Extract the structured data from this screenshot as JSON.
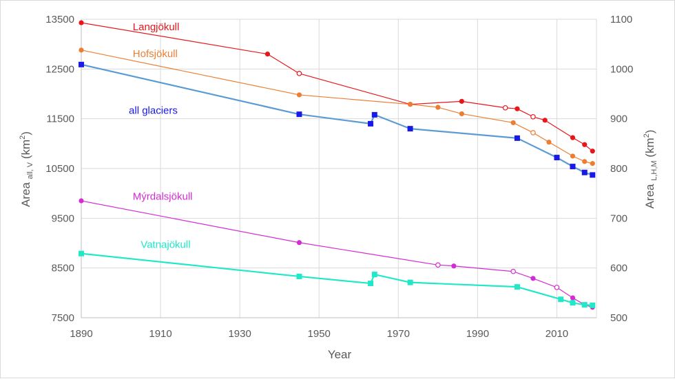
{
  "chart_data": {
    "type": "line",
    "title": "",
    "xlabel": "Year",
    "ylabel_left": {
      "main": "Area ",
      "sub": "all, V",
      "unit_pre": " (km",
      "unit_sup": "2",
      "unit_post": ")"
    },
    "ylabel_right": {
      "main": "Area ",
      "sub": "L,H,M",
      "unit_pre": " (km",
      "unit_sup": "2",
      "unit_post": ")"
    },
    "xlim": [
      1890,
      2020
    ],
    "ylim_left": [
      7500,
      13500
    ],
    "ylim_right": [
      500,
      1100
    ],
    "x_ticks": [
      1890,
      1910,
      1930,
      1950,
      1970,
      1990,
      2010
    ],
    "y_ticks_left": [
      7500,
      8500,
      9500,
      10500,
      11500,
      12500,
      13500
    ],
    "y_ticks_right": [
      500,
      600,
      700,
      800,
      900,
      1000,
      1100
    ],
    "grid": true,
    "series": [
      {
        "name": "Langjökull",
        "axis": "right",
        "color": "#e8161a",
        "marker": "circle",
        "line_width": 1.2,
        "label_pos": [
          1903,
          1078
        ],
        "points": [
          [
            1890,
            1093,
            true
          ],
          [
            1937,
            1030,
            true
          ],
          [
            1945,
            991,
            false
          ],
          [
            1973,
            929,
            true
          ],
          [
            1986,
            935,
            true
          ],
          [
            1997,
            922,
            false
          ],
          [
            2000,
            920,
            true
          ],
          [
            2004,
            904,
            false
          ],
          [
            2007,
            897,
            true
          ],
          [
            2014,
            862,
            true
          ],
          [
            2017,
            848,
            true
          ],
          [
            2019,
            835,
            true
          ]
        ]
      },
      {
        "name": "Hofsjökull",
        "axis": "right",
        "color": "#ed7d31",
        "marker": "circle",
        "line_width": 1.2,
        "label_pos": [
          1903,
          1024
        ],
        "points": [
          [
            1890,
            1038,
            true
          ],
          [
            1945,
            948,
            true
          ],
          [
            1973,
            929,
            true
          ],
          [
            1980,
            923,
            true
          ],
          [
            1986,
            910,
            true
          ],
          [
            1999,
            892,
            true
          ],
          [
            2004,
            872,
            false
          ],
          [
            2008,
            853,
            true
          ],
          [
            2014,
            825,
            true
          ],
          [
            2017,
            814,
            true
          ],
          [
            2019,
            810,
            true
          ]
        ]
      },
      {
        "name": "all glaciers",
        "axis": "left",
        "color": "#5b9bd5",
        "marker_color": "#1a1ae6",
        "marker": "square",
        "line_width": 2.2,
        "label_pos": [
          1902,
          11600
        ],
        "points": [
          [
            1890,
            12590,
            true
          ],
          [
            1945,
            11590,
            true
          ],
          [
            1963,
            11400,
            true
          ],
          [
            1964,
            11580,
            true
          ],
          [
            1973,
            11300,
            true
          ],
          [
            2000,
            11110,
            true
          ],
          [
            2010,
            10720,
            true
          ],
          [
            2014,
            10540,
            true
          ],
          [
            2017,
            10420,
            true
          ],
          [
            2019,
            10370,
            true
          ]
        ]
      },
      {
        "name": "Mýrdalsjökull",
        "axis": "right",
        "color": "#d42bd4",
        "marker": "circle",
        "line_width": 1.2,
        "label_pos": [
          1903,
          737
        ],
        "points": [
          [
            1890,
            735,
            true
          ],
          [
            1945,
            651,
            true
          ],
          [
            1980,
            606,
            false
          ],
          [
            1984,
            604,
            true
          ],
          [
            1999,
            593,
            false
          ],
          [
            2004,
            579,
            true
          ],
          [
            2010,
            561,
            false
          ],
          [
            2014,
            540,
            true
          ],
          [
            2017,
            526,
            true
          ],
          [
            2019,
            521,
            true
          ]
        ]
      },
      {
        "name": "Vatnajökull",
        "axis": "left",
        "color": "#20e8c8",
        "marker": "square",
        "line_width": 2.2,
        "label_pos": [
          1905,
          8900
        ],
        "points": [
          [
            1890,
            8790,
            true
          ],
          [
            1945,
            8330,
            true
          ],
          [
            1963,
            8190,
            true
          ],
          [
            1964,
            8370,
            true
          ],
          [
            1973,
            8210,
            true
          ],
          [
            2000,
            8120,
            true
          ],
          [
            2011,
            7870,
            true
          ],
          [
            2014,
            7800,
            true
          ],
          [
            2017,
            7760,
            true
          ],
          [
            2019,
            7750,
            true
          ]
        ]
      }
    ]
  }
}
